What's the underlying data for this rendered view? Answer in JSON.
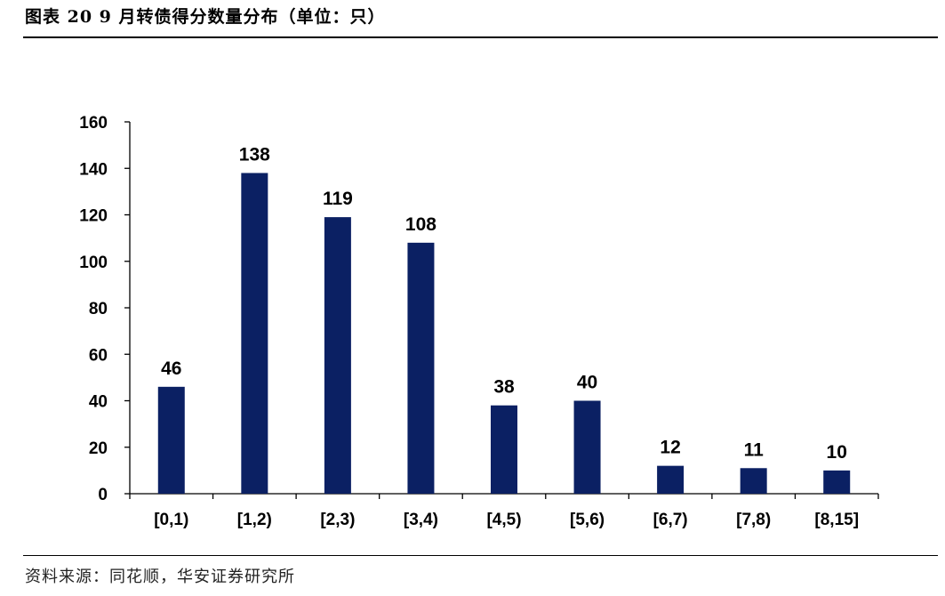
{
  "header": {
    "title": "图表 20 9 月转债得分数量分布（单位：只）"
  },
  "footer": {
    "source": "资料来源：同花顺，华安证券研究所"
  },
  "chart_data": {
    "type": "bar",
    "categories": [
      "[0,1)",
      "[1,2)",
      "[2,3)",
      "[3,4)",
      "[4,5)",
      "[5,6)",
      "[6,7)",
      "[7,8)",
      "[8,15]"
    ],
    "values": [
      46,
      138,
      119,
      108,
      38,
      40,
      12,
      11,
      10
    ],
    "ylim": [
      0,
      160
    ],
    "yticks": [
      0,
      20,
      40,
      60,
      80,
      100,
      120,
      140,
      160
    ],
    "title": "",
    "xlabel": "",
    "ylabel": "",
    "grid": false,
    "legend": "none",
    "bar_color": "#0b2063"
  }
}
